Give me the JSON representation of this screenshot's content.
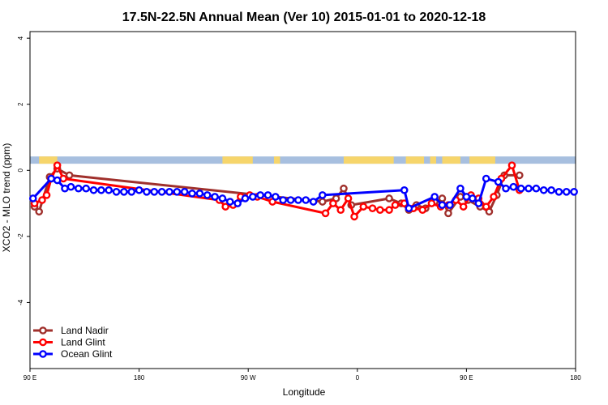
{
  "chart_data": {
    "type": "line",
    "title": "17.5N-22.5N Annual Mean (Ver 10)   2015-01-01 to 2020-12-18",
    "xlabel": "Longitude",
    "ylabel": "XCO2 - MLO trend (ppm)",
    "xlim": [
      90,
      450
    ],
    "ylim": [
      -6,
      4.2
    ],
    "x_ticks": [
      {
        "value": 90,
        "label": "90 E"
      },
      {
        "value": 162,
        "label": "180"
      },
      {
        "value": 234,
        "label": "90 W"
      },
      {
        "value": 306,
        "label": "0"
      },
      {
        "value": 378,
        "label": "90 E"
      },
      {
        "value": 450,
        "label": "180"
      }
    ],
    "y_ticks": [
      4,
      2,
      0,
      -2,
      -4
    ],
    "grid": false,
    "legend_position": "bottom-left",
    "land_band": {
      "y_range": [
        0.2,
        0.42
      ],
      "ocean_color": "#a7bfdf",
      "land_color": "#f6d56b",
      "land_x_ranges": [
        [
          96,
          108
        ],
        [
          217,
          237
        ],
        [
          251,
          255
        ],
        [
          297,
          330
        ],
        [
          338,
          350
        ],
        [
          354,
          358
        ],
        [
          362,
          374
        ],
        [
          380,
          397
        ]
      ]
    },
    "series": [
      {
        "name": "Land Nadir",
        "color": "#a0302c",
        "x": [
          93,
          96,
          103,
          108,
          116,
          283,
          292,
          297,
          302,
          327,
          335,
          340,
          345,
          351,
          357,
          362,
          366,
          374,
          379,
          387,
          393,
          398,
          403,
          413
        ],
        "y": [
          -1.1,
          -1.25,
          -0.2,
          0.05,
          -0.15,
          -0.95,
          -0.85,
          -0.55,
          -1.05,
          -0.85,
          -1.0,
          -1.2,
          -1.05,
          -1.15,
          -0.95,
          -0.85,
          -1.3,
          -0.8,
          -0.9,
          -1.1,
          -1.25,
          -0.75,
          -0.15,
          -0.15
        ]
      },
      {
        "name": "Land Glint",
        "color": "#ff0000",
        "x": [
          93,
          98,
          101,
          104,
          108,
          112,
          215,
          219,
          224,
          229,
          235,
          240,
          250,
          285,
          290,
          295,
          300,
          304,
          310,
          316,
          321,
          327,
          331,
          337,
          343,
          349,
          355,
          361,
          366,
          371,
          376,
          381,
          386,
          391,
          396,
          401,
          408,
          413
        ],
        "y": [
          -1.0,
          -0.9,
          -0.75,
          -0.25,
          0.15,
          -0.25,
          -0.9,
          -1.1,
          -1.05,
          -0.8,
          -0.75,
          -0.8,
          -0.95,
          -1.3,
          -1.0,
          -1.2,
          -0.85,
          -1.4,
          -1.1,
          -1.15,
          -1.2,
          -1.2,
          -1.05,
          -1.0,
          -1.15,
          -1.2,
          -1.0,
          -1.1,
          -1.05,
          -0.9,
          -1.1,
          -0.75,
          -0.85,
          -1.1,
          -0.8,
          -0.25,
          0.15,
          -0.6
        ]
      },
      {
        "name": "Ocean Glint",
        "color": "#0000ff",
        "x": [
          92,
          104,
          108,
          113,
          117,
          122,
          127,
          132,
          137,
          142,
          147,
          152,
          157,
          162,
          167,
          172,
          177,
          182,
          187,
          192,
          197,
          202,
          207,
          212,
          217,
          222,
          227,
          232,
          237,
          242,
          247,
          252,
          257,
          262,
          267,
          272,
          277,
          283,
          337,
          340,
          357,
          362,
          367,
          374,
          378,
          382,
          386,
          391,
          399,
          404,
          409,
          414,
          419,
          424,
          429,
          434,
          439,
          444,
          449
        ],
        "y": [
          -0.85,
          -0.25,
          -0.3,
          -0.55,
          -0.5,
          -0.55,
          -0.55,
          -0.6,
          -0.6,
          -0.6,
          -0.65,
          -0.65,
          -0.65,
          -0.6,
          -0.65,
          -0.65,
          -0.65,
          -0.65,
          -0.65,
          -0.65,
          -0.7,
          -0.7,
          -0.75,
          -0.8,
          -0.85,
          -0.95,
          -1.0,
          -0.85,
          -0.8,
          -0.75,
          -0.75,
          -0.8,
          -0.9,
          -0.9,
          -0.9,
          -0.9,
          -0.95,
          -0.75,
          -0.6,
          -1.15,
          -0.8,
          -1.05,
          -1.05,
          -0.55,
          -0.8,
          -0.85,
          -1.0,
          -0.25,
          -0.35,
          -0.55,
          -0.5,
          -0.55,
          -0.55,
          -0.55,
          -0.6,
          -0.6,
          -0.65,
          -0.65,
          -0.65
        ]
      }
    ]
  }
}
